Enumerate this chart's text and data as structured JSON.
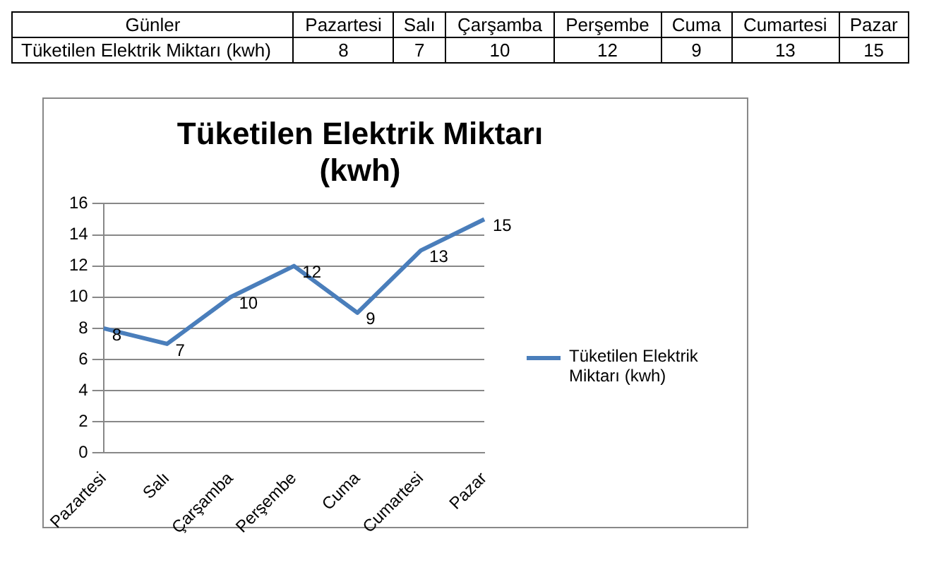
{
  "chart_data": {
    "type": "line",
    "title": "Tüketilen Elektrik Miktarı (kwh)",
    "annotations": [
      "Günler",
      "8",
      "7",
      "10",
      "12",
      "9",
      "13",
      "15"
    ],
    "categories": [
      "Pazartesi",
      "Salı",
      "Çarşamba",
      "Perşembe",
      "Cuma",
      "Cumartesi",
      "Pazar"
    ],
    "series": [
      {
        "name": "Tüketilen Elektrik Miktarı (kwh)",
        "color": "#4a7ebb",
        "values": [
          8,
          7,
          10,
          12,
          9,
          13,
          15
        ]
      }
    ],
    "ylim": [
      0,
      16
    ],
    "yticks": [
      0,
      2,
      4,
      6,
      8,
      10,
      12,
      14,
      16
    ],
    "grid": "y",
    "legend": "right",
    "marker": "none",
    "line_style": "solid",
    "data_labels": true
  }
}
